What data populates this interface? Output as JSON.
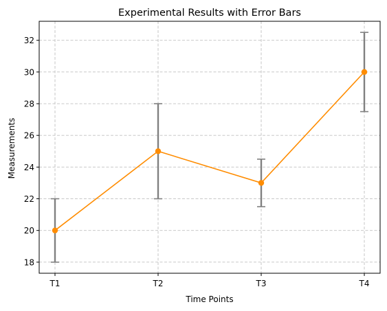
{
  "chart_data": {
    "type": "line",
    "title": "Experimental Results with Error Bars",
    "xlabel": "Time Points",
    "ylabel": "Measurements",
    "categories": [
      "T1",
      "T2",
      "T3",
      "T4"
    ],
    "series": [
      {
        "values": [
          20,
          25,
          23,
          30
        ],
        "errors": [
          2,
          3,
          1.5,
          2.5
        ],
        "color": "#ff8c00",
        "error_color": "#808080",
        "marker": "circle"
      }
    ],
    "yticks": [
      18,
      20,
      22,
      24,
      26,
      28,
      30,
      32
    ],
    "ylim": [
      17.3,
      33.2
    ],
    "grid": true,
    "grid_style": "dashed",
    "grid_color": "#c0c0c0"
  }
}
